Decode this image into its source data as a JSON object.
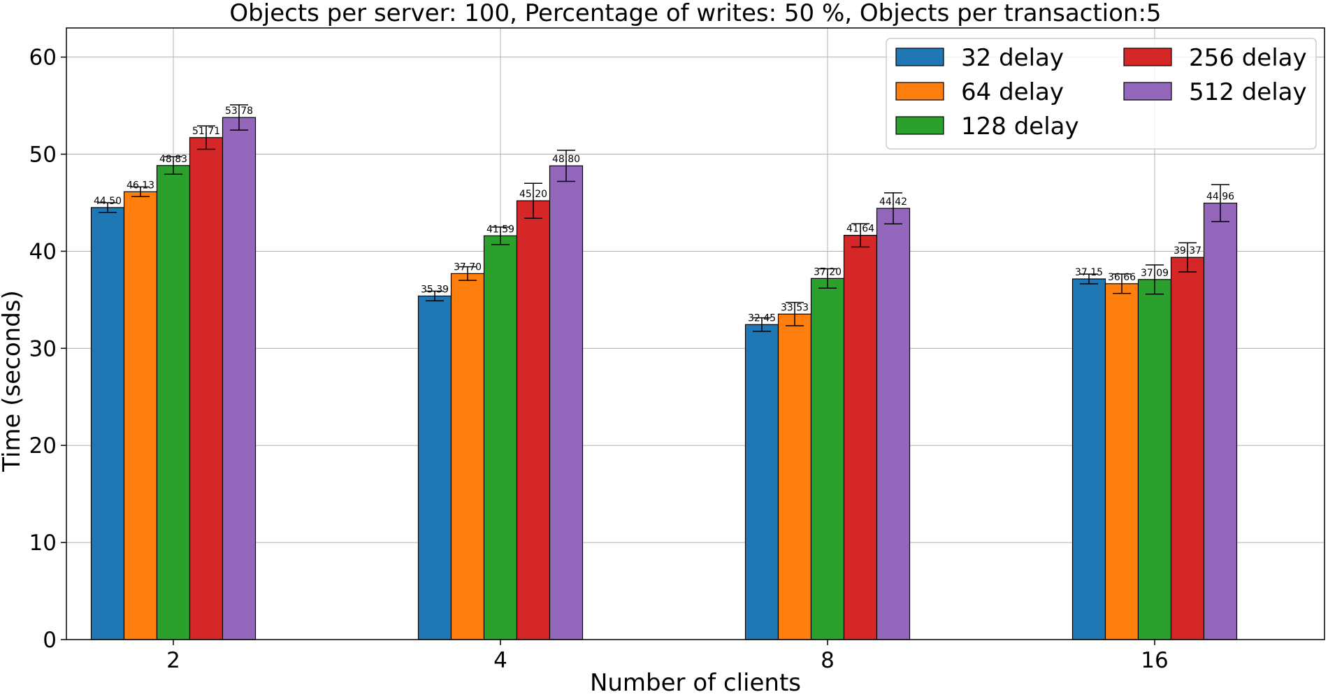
{
  "chart_data": {
    "type": "bar",
    "title": "Objects per server: 100, Percentage of writes: 50 %, Objects per transaction:5",
    "xlabel": "Number of clients",
    "ylabel": "Time (seconds)",
    "categories": [
      "2",
      "4",
      "8",
      "16"
    ],
    "ylim": [
      0,
      63
    ],
    "yticks": [
      0,
      10,
      20,
      30,
      40,
      50,
      60
    ],
    "grid": true,
    "legend_position": "top-right",
    "series": [
      {
        "name": "32 delay",
        "color": "#1f77b4",
        "values": [
          44.5,
          35.39,
          32.45,
          37.15
        ],
        "labels": [
          "44.50",
          "35.39",
          "32.45",
          "37.15"
        ],
        "errors": [
          0.5,
          0.5,
          0.7,
          0.5
        ]
      },
      {
        "name": "64 delay",
        "color": "#ff7f0e",
        "values": [
          46.13,
          37.7,
          33.53,
          36.66
        ],
        "labels": [
          "46.13",
          "37.70",
          "33.53",
          "36.66"
        ],
        "errors": [
          0.5,
          0.7,
          1.2,
          1.0
        ]
      },
      {
        "name": "128 delay",
        "color": "#2ca02c",
        "values": [
          48.83,
          41.59,
          37.2,
          37.09
        ],
        "labels": [
          "48.83",
          "41.59",
          "37.20",
          "37.09"
        ],
        "errors": [
          0.9,
          0.9,
          1.0,
          1.5
        ]
      },
      {
        "name": "256 delay",
        "color": "#d62728",
        "values": [
          51.71,
          45.2,
          41.64,
          39.37
        ],
        "labels": [
          "51.71",
          "45.20",
          "41.64",
          "39.37"
        ],
        "errors": [
          1.2,
          1.8,
          1.2,
          1.5
        ]
      },
      {
        "name": "512 delay",
        "color": "#9467bd",
        "values": [
          53.78,
          48.8,
          44.42,
          44.96
        ],
        "labels": [
          "53.78",
          "48.80",
          "44.42",
          "44.96"
        ],
        "errors": [
          1.3,
          1.6,
          1.6,
          1.9
        ]
      }
    ]
  }
}
